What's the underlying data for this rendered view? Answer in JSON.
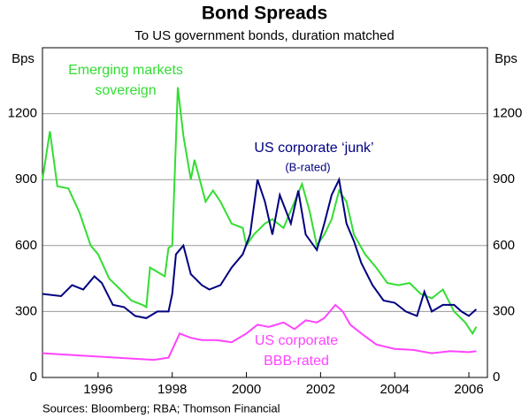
{
  "chart_data": {
    "type": "line",
    "title": "Bond Spreads",
    "subtitle": "To US government bonds, duration matched",
    "y_label": "Bps",
    "y2_label": "Bps",
    "source": "Sources: Bloomberg; RBA; Thomson Financial",
    "xlim": [
      1994.5,
      2006.5
    ],
    "xticks": [
      1996,
      1998,
      2000,
      2002,
      2004,
      2006
    ],
    "ylim": [
      0,
      1500
    ],
    "yticks": [
      0,
      300,
      600,
      900,
      1200
    ],
    "y2lim": [
      0,
      1500
    ],
    "y2ticks": [
      0,
      300,
      600,
      900,
      1200
    ],
    "grid": true,
    "series": [
      {
        "name_lines": [
          "Emerging markets",
          "sovereign"
        ],
        "color": "#33dd33",
        "x": [
          1994.5,
          1994.7,
          1994.9,
          1995.2,
          1995.5,
          1995.8,
          1996.0,
          1996.3,
          1996.6,
          1996.9,
          1997.2,
          1997.3,
          1997.4,
          1997.6,
          1997.8,
          1997.9,
          1998.0,
          1998.15,
          1998.3,
          1998.5,
          1998.6,
          1998.9,
          1999.1,
          1999.3,
          1999.6,
          1999.9,
          2000.0,
          2000.2,
          2000.5,
          2000.7,
          2001.0,
          2001.3,
          2001.5,
          2001.7,
          2001.9,
          2002.1,
          2002.3,
          2002.5,
          2002.7,
          2002.9,
          2003.2,
          2003.5,
          2003.8,
          2004.1,
          2004.4,
          2004.7,
          2005.0,
          2005.3,
          2005.6,
          2005.9,
          2006.1,
          2006.2
        ],
        "values": [
          900,
          1120,
          870,
          860,
          750,
          600,
          560,
          450,
          400,
          350,
          330,
          320,
          500,
          480,
          460,
          590,
          600,
          1320,
          1100,
          900,
          990,
          800,
          850,
          800,
          700,
          680,
          600,
          650,
          700,
          720,
          680,
          800,
          880,
          760,
          600,
          650,
          720,
          850,
          800,
          650,
          560,
          500,
          430,
          420,
          430,
          380,
          360,
          400,
          300,
          250,
          200,
          230
        ]
      },
      {
        "name_lines": [
          "US corporate ‘junk’",
          "(B-rated)"
        ],
        "color": "#000080",
        "x": [
          1994.5,
          1995.0,
          1995.3,
          1995.6,
          1995.9,
          1996.1,
          1996.4,
          1996.7,
          1997.0,
          1997.3,
          1997.6,
          1997.9,
          1998.0,
          1998.1,
          1998.3,
          1998.5,
          1998.8,
          1999.0,
          1999.3,
          1999.6,
          1999.9,
          2000.1,
          2000.3,
          2000.5,
          2000.7,
          2000.9,
          2001.2,
          2001.4,
          2001.6,
          2001.9,
          2002.1,
          2002.3,
          2002.5,
          2002.7,
          2002.9,
          2003.1,
          2003.4,
          2003.7,
          2004.0,
          2004.3,
          2004.6,
          2004.8,
          2005.0,
          2005.3,
          2005.6,
          2005.8,
          2006.0,
          2006.2
        ],
        "values": [
          380,
          370,
          420,
          400,
          460,
          430,
          330,
          320,
          280,
          270,
          300,
          300,
          380,
          560,
          600,
          470,
          420,
          400,
          420,
          500,
          560,
          650,
          900,
          800,
          650,
          830,
          700,
          850,
          650,
          580,
          700,
          830,
          900,
          700,
          620,
          520,
          420,
          350,
          340,
          300,
          280,
          390,
          300,
          330,
          330,
          300,
          280,
          310
        ]
      },
      {
        "name_lines": [
          "US corporate",
          "BBB-rated"
        ],
        "color": "#ff44ff",
        "x": [
          1994.5,
          1995.0,
          1995.5,
          1996.0,
          1996.5,
          1997.0,
          1997.5,
          1997.9,
          1998.2,
          1998.5,
          1998.8,
          1999.2,
          1999.6,
          2000.0,
          2000.3,
          2000.6,
          2001.0,
          2001.3,
          2001.6,
          2001.9,
          2002.1,
          2002.4,
          2002.6,
          2002.8,
          2003.1,
          2003.5,
          2004.0,
          2004.5,
          2005.0,
          2005.5,
          2006.0,
          2006.2
        ],
        "values": [
          110,
          105,
          100,
          95,
          90,
          85,
          80,
          90,
          200,
          180,
          170,
          170,
          160,
          200,
          240,
          230,
          250,
          220,
          260,
          250,
          270,
          330,
          300,
          240,
          200,
          150,
          130,
          125,
          110,
          120,
          115,
          120
        ]
      }
    ]
  }
}
